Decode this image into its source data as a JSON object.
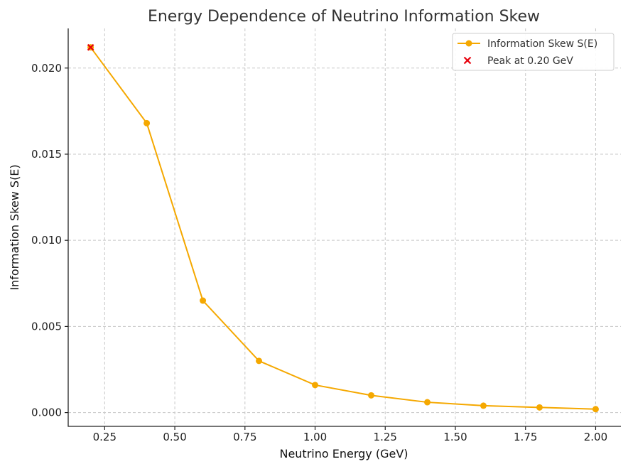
{
  "chart_data": {
    "type": "line",
    "title": "Energy Dependence of Neutrino Information Skew",
    "xlabel": "Neutrino Energy (GeV)",
    "ylabel": "Information Skew S(E)",
    "xlim": [
      0.12,
      2.09
    ],
    "ylim": [
      -0.0008,
      0.0223
    ],
    "xticks": [
      0.25,
      0.5,
      0.75,
      1.0,
      1.25,
      1.5,
      1.75,
      2.0
    ],
    "xtick_labels": [
      "0.25",
      "0.50",
      "0.75",
      "1.00",
      "1.25",
      "1.50",
      "1.75",
      "2.00"
    ],
    "yticks": [
      0.0,
      0.005,
      0.01,
      0.015,
      0.02
    ],
    "ytick_labels": [
      "0.000",
      "0.005",
      "0.010",
      "0.015",
      "0.020"
    ],
    "grid": true,
    "legend_position": "top-right",
    "series": [
      {
        "name": "Information Skew S(E)",
        "color": "#f5a800",
        "marker": "circle",
        "x": [
          0.2,
          0.4,
          0.6,
          0.8,
          1.0,
          1.2,
          1.4,
          1.6,
          1.8,
          2.0
        ],
        "y": [
          0.0212,
          0.0168,
          0.0065,
          0.003,
          0.0016,
          0.001,
          0.0006,
          0.0004,
          0.0003,
          0.0002
        ]
      }
    ],
    "peak": {
      "name": "Peak at 0.20 GeV",
      "color": "#e8000b",
      "marker": "x",
      "x": 0.2,
      "y": 0.0212
    }
  }
}
